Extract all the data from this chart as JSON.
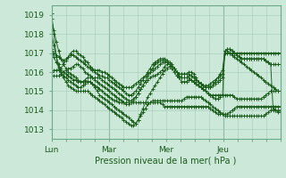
{
  "xlabel": "Pression niveau de la mer( hPa )",
  "ylim": [
    1012.5,
    1019.5
  ],
  "yticks": [
    1013,
    1014,
    1015,
    1016,
    1017,
    1018,
    1019
  ],
  "xlim": [
    0,
    96
  ],
  "xtick_positions": [
    0,
    24,
    48,
    72
  ],
  "xtick_labels": [
    "Lun",
    "Mar",
    "Mer",
    "Jeu"
  ],
  "vlines": [
    24,
    72
  ],
  "bg_color": "#cce8d8",
  "grid_color": "#a8cbb8",
  "line_color": "#1a5c1a",
  "series": [
    [
      1018.8,
      1018.2,
      1017.6,
      1017.1,
      1016.7,
      1016.4,
      1016.2,
      1016.0,
      1015.9,
      1015.8,
      1015.7,
      1015.6,
      1015.5,
      1015.5,
      1015.5,
      1015.5,
      1015.5,
      1015.4,
      1015.3,
      1015.2,
      1015.1,
      1015.0,
      1014.9,
      1014.8,
      1014.7,
      1014.6,
      1014.5,
      1014.5,
      1014.4,
      1014.4,
      1014.4,
      1014.4,
      1014.4,
      1014.4,
      1014.4,
      1014.4,
      1014.4,
      1014.4,
      1014.4,
      1014.4,
      1014.4,
      1014.4,
      1014.4,
      1014.4,
      1014.4,
      1014.4,
      1014.3,
      1014.2,
      1014.2,
      1014.2,
      1014.2,
      1014.2,
      1014.2,
      1014.2,
      1014.2,
      1014.2,
      1014.2,
      1014.2,
      1014.2,
      1014.2,
      1014.2,
      1014.2,
      1014.2,
      1014.2,
      1014.2,
      1014.2,
      1014.1,
      1014.0,
      1013.9,
      1013.8,
      1013.8,
      1013.8,
      1013.8,
      1013.8,
      1013.9,
      1014.0,
      1014.1,
      1014.2,
      1014.2,
      1014.2,
      1014.2,
      1014.2,
      1014.2,
      1014.2,
      1014.2,
      1014.2,
      1014.2,
      1014.2,
      1014.2,
      1014.2,
      1014.2,
      1014.2,
      1014.2,
      1014.2,
      1014.2,
      1014.2
    ],
    [
      1018.0,
      1017.4,
      1016.8,
      1016.4,
      1016.0,
      1015.7,
      1015.5,
      1015.3,
      1015.2,
      1015.1,
      1015.0,
      1015.0,
      1015.0,
      1015.0,
      1015.0,
      1015.0,
      1014.9,
      1014.8,
      1014.7,
      1014.6,
      1014.5,
      1014.4,
      1014.3,
      1014.2,
      1014.1,
      1014.0,
      1013.9,
      1013.8,
      1013.7,
      1013.6,
      1013.5,
      1013.4,
      1013.3,
      1013.2,
      1013.2,
      1013.3,
      1013.5,
      1013.7,
      1013.9,
      1014.1,
      1014.3,
      1014.4,
      1014.5,
      1014.5,
      1014.5,
      1014.5,
      1014.5,
      1014.5,
      1014.5,
      1014.5,
      1014.5,
      1014.5,
      1014.5,
      1014.5,
      1014.5,
      1014.6,
      1014.7,
      1014.7,
      1014.7,
      1014.7,
      1014.7,
      1014.7,
      1014.7,
      1014.6,
      1014.5,
      1014.4,
      1014.3,
      1014.2,
      1014.1,
      1014.0,
      1013.9,
      1013.8,
      1013.7,
      1013.7,
      1013.7,
      1013.7,
      1013.7,
      1013.7,
      1013.7,
      1013.7,
      1013.7,
      1013.7,
      1013.7,
      1013.7,
      1013.7,
      1013.7,
      1013.7,
      1013.7,
      1013.7,
      1013.8,
      1013.9,
      1014.0,
      1014.0,
      1014.0,
      1014.0,
      1014.0
    ],
    [
      1017.2,
      1016.8,
      1016.5,
      1016.3,
      1016.1,
      1016.0,
      1015.9,
      1015.8,
      1015.7,
      1015.6,
      1015.6,
      1015.5,
      1015.5,
      1015.5,
      1015.6,
      1015.7,
      1015.7,
      1015.7,
      1015.6,
      1015.5,
      1015.4,
      1015.3,
      1015.2,
      1015.1,
      1015.0,
      1014.9,
      1014.8,
      1014.7,
      1014.6,
      1014.5,
      1014.4,
      1014.3,
      1014.3,
      1014.4,
      1014.5,
      1014.7,
      1014.9,
      1015.1,
      1015.3,
      1015.5,
      1015.6,
      1015.7,
      1015.8,
      1015.8,
      1015.9,
      1016.0,
      1016.1,
      1016.3,
      1016.4,
      1016.4,
      1016.3,
      1016.2,
      1016.0,
      1015.8,
      1015.7,
      1015.7,
      1015.7,
      1015.7,
      1015.6,
      1015.5,
      1015.4,
      1015.3,
      1015.2,
      1015.1,
      1015.0,
      1014.9,
      1014.8,
      1014.8,
      1014.8,
      1014.8,
      1014.8,
      1014.8,
      1014.8,
      1014.8,
      1014.8,
      1014.8,
      1014.7,
      1014.6,
      1014.6,
      1014.6,
      1014.6,
      1014.6,
      1014.6,
      1014.6,
      1014.6,
      1014.6,
      1014.6,
      1014.6,
      1014.7,
      1014.8,
      1014.9,
      1015.0,
      1015.0,
      1015.0,
      1015.0,
      1015.0
    ],
    [
      1019.1,
      1018.0,
      1016.8,
      1016.2,
      1015.9,
      1015.8,
      1015.7,
      1015.6,
      1015.5,
      1015.4,
      1015.3,
      1015.2,
      1015.2,
      1015.3,
      1015.4,
      1015.5,
      1015.5,
      1015.4,
      1015.2,
      1015.0,
      1014.8,
      1014.7,
      1014.6,
      1014.5,
      1014.4,
      1014.3,
      1014.2,
      1014.1,
      1014.0,
      1013.9,
      1013.8,
      1013.7,
      1013.6,
      1013.5,
      1013.4,
      1013.3,
      1013.5,
      1013.8,
      1014.1,
      1014.4,
      1014.7,
      1014.9,
      1015.1,
      1015.3,
      1015.5,
      1015.7,
      1015.9,
      1016.1,
      1016.2,
      1016.3,
      1016.3,
      1016.2,
      1016.0,
      1015.7,
      1015.5,
      1015.5,
      1015.5,
      1015.6,
      1015.6,
      1015.5,
      1015.4,
      1015.3,
      1015.2,
      1015.1,
      1015.0,
      1014.9,
      1014.8,
      1014.7,
      1014.6,
      1014.6,
      1014.7,
      1014.8,
      1017.1,
      1017.1,
      1017.0,
      1016.9,
      1016.8,
      1016.7,
      1016.6,
      1016.5,
      1016.4,
      1016.3,
      1016.2,
      1016.1,
      1016.0,
      1015.9,
      1015.8,
      1015.7,
      1015.6,
      1015.5,
      1015.4,
      1015.3,
      1015.2,
      1015.1,
      1015.0,
      1015.0
    ],
    [
      1017.1,
      1017.0,
      1016.9,
      1016.8,
      1016.7,
      1016.6,
      1016.7,
      1016.8,
      1016.9,
      1016.9,
      1016.8,
      1016.7,
      1016.6,
      1016.5,
      1016.4,
      1016.3,
      1016.2,
      1016.1,
      1016.1,
      1016.1,
      1016.1,
      1016.0,
      1016.0,
      1015.9,
      1015.8,
      1015.7,
      1015.6,
      1015.5,
      1015.4,
      1015.3,
      1015.2,
      1015.2,
      1015.2,
      1015.2,
      1015.3,
      1015.4,
      1015.5,
      1015.6,
      1015.7,
      1015.8,
      1015.9,
      1016.0,
      1016.1,
      1016.2,
      1016.3,
      1016.4,
      1016.5,
      1016.5,
      1016.5,
      1016.4,
      1016.3,
      1016.2,
      1016.0,
      1015.9,
      1015.9,
      1015.9,
      1015.9,
      1015.9,
      1015.8,
      1015.7,
      1015.6,
      1015.5,
      1015.4,
      1015.3,
      1015.3,
      1015.3,
      1015.4,
      1015.5,
      1015.6,
      1015.7,
      1015.8,
      1015.9,
      1017.0,
      1017.0,
      1017.0,
      1017.0,
      1017.0,
      1017.0,
      1017.0,
      1017.0,
      1017.0,
      1017.0,
      1017.0,
      1017.0,
      1017.0,
      1017.0,
      1017.0,
      1017.0,
      1017.0,
      1017.0,
      1017.0,
      1017.0,
      1017.0,
      1017.0,
      1017.0,
      1017.0
    ],
    [
      1016.0,
      1016.1,
      1016.1,
      1016.1,
      1016.2,
      1016.4,
      1016.6,
      1016.8,
      1017.0,
      1017.1,
      1017.1,
      1017.0,
      1016.9,
      1016.8,
      1016.6,
      1016.5,
      1016.3,
      1016.2,
      1016.0,
      1015.9,
      1015.8,
      1015.8,
      1015.7,
      1015.7,
      1015.6,
      1015.5,
      1015.4,
      1015.3,
      1015.2,
      1015.1,
      1015.0,
      1014.9,
      1014.8,
      1014.8,
      1014.9,
      1015.0,
      1015.2,
      1015.4,
      1015.6,
      1015.8,
      1016.0,
      1016.2,
      1016.4,
      1016.5,
      1016.6,
      1016.7,
      1016.7,
      1016.7,
      1016.6,
      1016.5,
      1016.4,
      1016.2,
      1016.0,
      1015.9,
      1015.9,
      1015.9,
      1015.9,
      1016.0,
      1016.0,
      1015.9,
      1015.7,
      1015.5,
      1015.4,
      1015.3,
      1015.2,
      1015.2,
      1015.2,
      1015.3,
      1015.4,
      1015.5,
      1015.6,
      1015.7,
      1017.1,
      1017.2,
      1017.2,
      1017.1,
      1017.0,
      1016.9,
      1016.8,
      1016.7,
      1016.7,
      1016.7,
      1016.7,
      1016.7,
      1016.7,
      1016.7,
      1016.7,
      1016.7,
      1016.7,
      1016.6,
      1016.5,
      1016.4,
      1016.4,
      1016.4,
      1016.4,
      1016.4
    ],
    [
      1015.8,
      1015.8,
      1015.8,
      1015.8,
      1015.9,
      1016.0,
      1016.1,
      1016.2,
      1016.2,
      1016.3,
      1016.4,
      1016.4,
      1016.3,
      1016.2,
      1016.0,
      1015.9,
      1015.8,
      1015.7,
      1015.7,
      1015.7,
      1015.7,
      1015.6,
      1015.5,
      1015.4,
      1015.3,
      1015.2,
      1015.1,
      1015.0,
      1014.9,
      1014.8,
      1014.7,
      1014.6,
      1014.5,
      1014.5,
      1014.6,
      1014.7,
      1014.9,
      1015.1,
      1015.3,
      1015.5,
      1015.8,
      1016.0,
      1016.2,
      1016.4,
      1016.5,
      1016.6,
      1016.6,
      1016.6,
      1016.5,
      1016.4,
      1016.2,
      1016.0,
      1015.8,
      1015.7,
      1015.7,
      1015.7,
      1015.7,
      1015.8,
      1015.8,
      1015.7,
      1015.6,
      1015.5,
      1015.4,
      1015.3,
      1015.2,
      1015.2,
      1015.2,
      1015.3,
      1015.5,
      1015.7,
      1015.9,
      1016.1,
      1017.1,
      1017.2,
      1017.2,
      1017.1,
      1017.0,
      1016.9,
      1016.8,
      1016.7,
      1016.7,
      1016.7,
      1016.7,
      1016.7,
      1016.7,
      1016.7,
      1016.7,
      1016.7,
      1016.7,
      1016.6,
      1016.5,
      1016.4,
      1014.1,
      1014.0,
      1013.9,
      1013.9
    ]
  ]
}
